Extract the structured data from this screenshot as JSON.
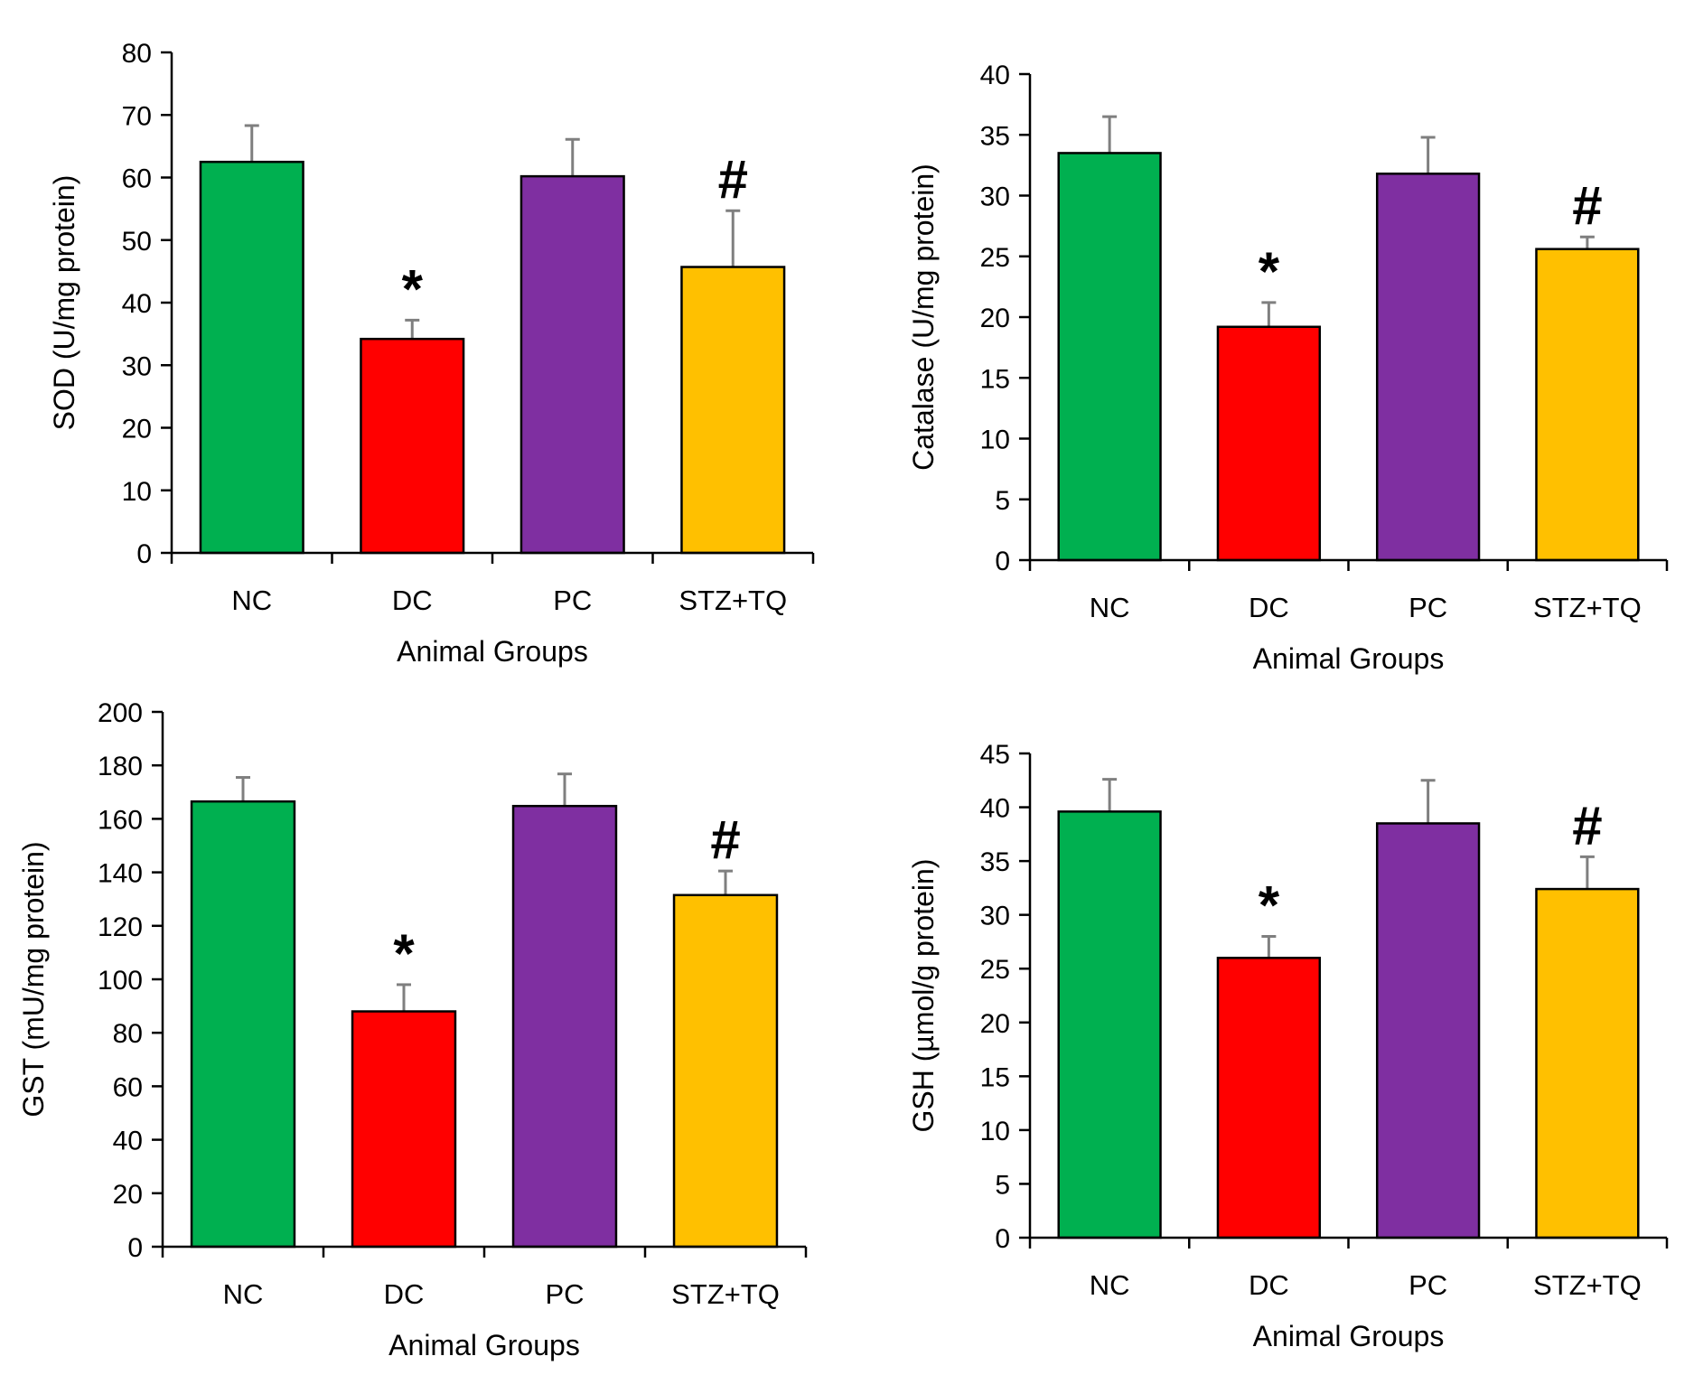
{
  "chart_data": [
    {
      "type": "bar",
      "title": "",
      "categories": [
        "NC",
        "DC",
        "PC",
        "STZ+TQ"
      ],
      "values": [
        62.5,
        34.2,
        60.2,
        45.7
      ],
      "errors": [
        5.8,
        3.0,
        5.9,
        9.0
      ],
      "markers": [
        "",
        "*",
        "",
        "#"
      ],
      "colors": [
        "#00b050",
        "#ff0000",
        "#7f2fa1",
        "#ffc000"
      ],
      "xlabel": "Animal Groups",
      "ylabel": "SOD (U/mg protein)",
      "ylim": [
        0,
        80
      ],
      "yticks": [
        0,
        10,
        20,
        30,
        40,
        50,
        60,
        70,
        80
      ],
      "grid": false,
      "legend": "none"
    },
    {
      "type": "bar",
      "title": "",
      "categories": [
        "NC",
        "DC",
        "PC",
        "STZ+TQ"
      ],
      "values": [
        33.5,
        19.2,
        31.8,
        25.6
      ],
      "errors": [
        3.0,
        2.0,
        3.0,
        1.0
      ],
      "markers": [
        "",
        "*",
        "",
        "#"
      ],
      "colors": [
        "#00b050",
        "#ff0000",
        "#7f2fa1",
        "#ffc000"
      ],
      "xlabel": "Animal Groups",
      "ylabel": "Catalase (U/mg protein)",
      "ylim": [
        0,
        40
      ],
      "yticks": [
        0,
        5,
        10,
        15,
        20,
        25,
        30,
        35,
        40
      ],
      "grid": false,
      "legend": "none"
    },
    {
      "type": "bar",
      "title": "",
      "categories": [
        "NC",
        "DC",
        "PC",
        "STZ+TQ"
      ],
      "values": [
        166.5,
        88.0,
        164.8,
        131.5
      ],
      "errors": [
        9.0,
        10.0,
        12.0,
        9.0
      ],
      "markers": [
        "",
        "*",
        "",
        "#"
      ],
      "colors": [
        "#00b050",
        "#ff0000",
        "#7f2fa1",
        "#ffc000"
      ],
      "xlabel": "Animal Groups",
      "ylabel": "GST (mU/mg protein)",
      "ylim": [
        0,
        200
      ],
      "yticks": [
        0,
        20,
        40,
        60,
        80,
        100,
        120,
        140,
        160,
        180,
        200
      ],
      "grid": false,
      "legend": "none"
    },
    {
      "type": "bar",
      "title": "",
      "categories": [
        "NC",
        "DC",
        "PC",
        "STZ+TQ"
      ],
      "values": [
        39.6,
        26.0,
        38.5,
        32.4
      ],
      "errors": [
        3.0,
        2.0,
        4.0,
        3.0
      ],
      "markers": [
        "",
        "*",
        "",
        "#"
      ],
      "colors": [
        "#00b050",
        "#ff0000",
        "#7f2fa1",
        "#ffc000"
      ],
      "xlabel": "Animal Groups",
      "ylabel": "GSH (µmol/g protein)",
      "ylim": [
        0,
        45
      ],
      "yticks": [
        0,
        5,
        10,
        15,
        20,
        25,
        30,
        35,
        40,
        45
      ],
      "grid": false,
      "legend": "none"
    }
  ]
}
